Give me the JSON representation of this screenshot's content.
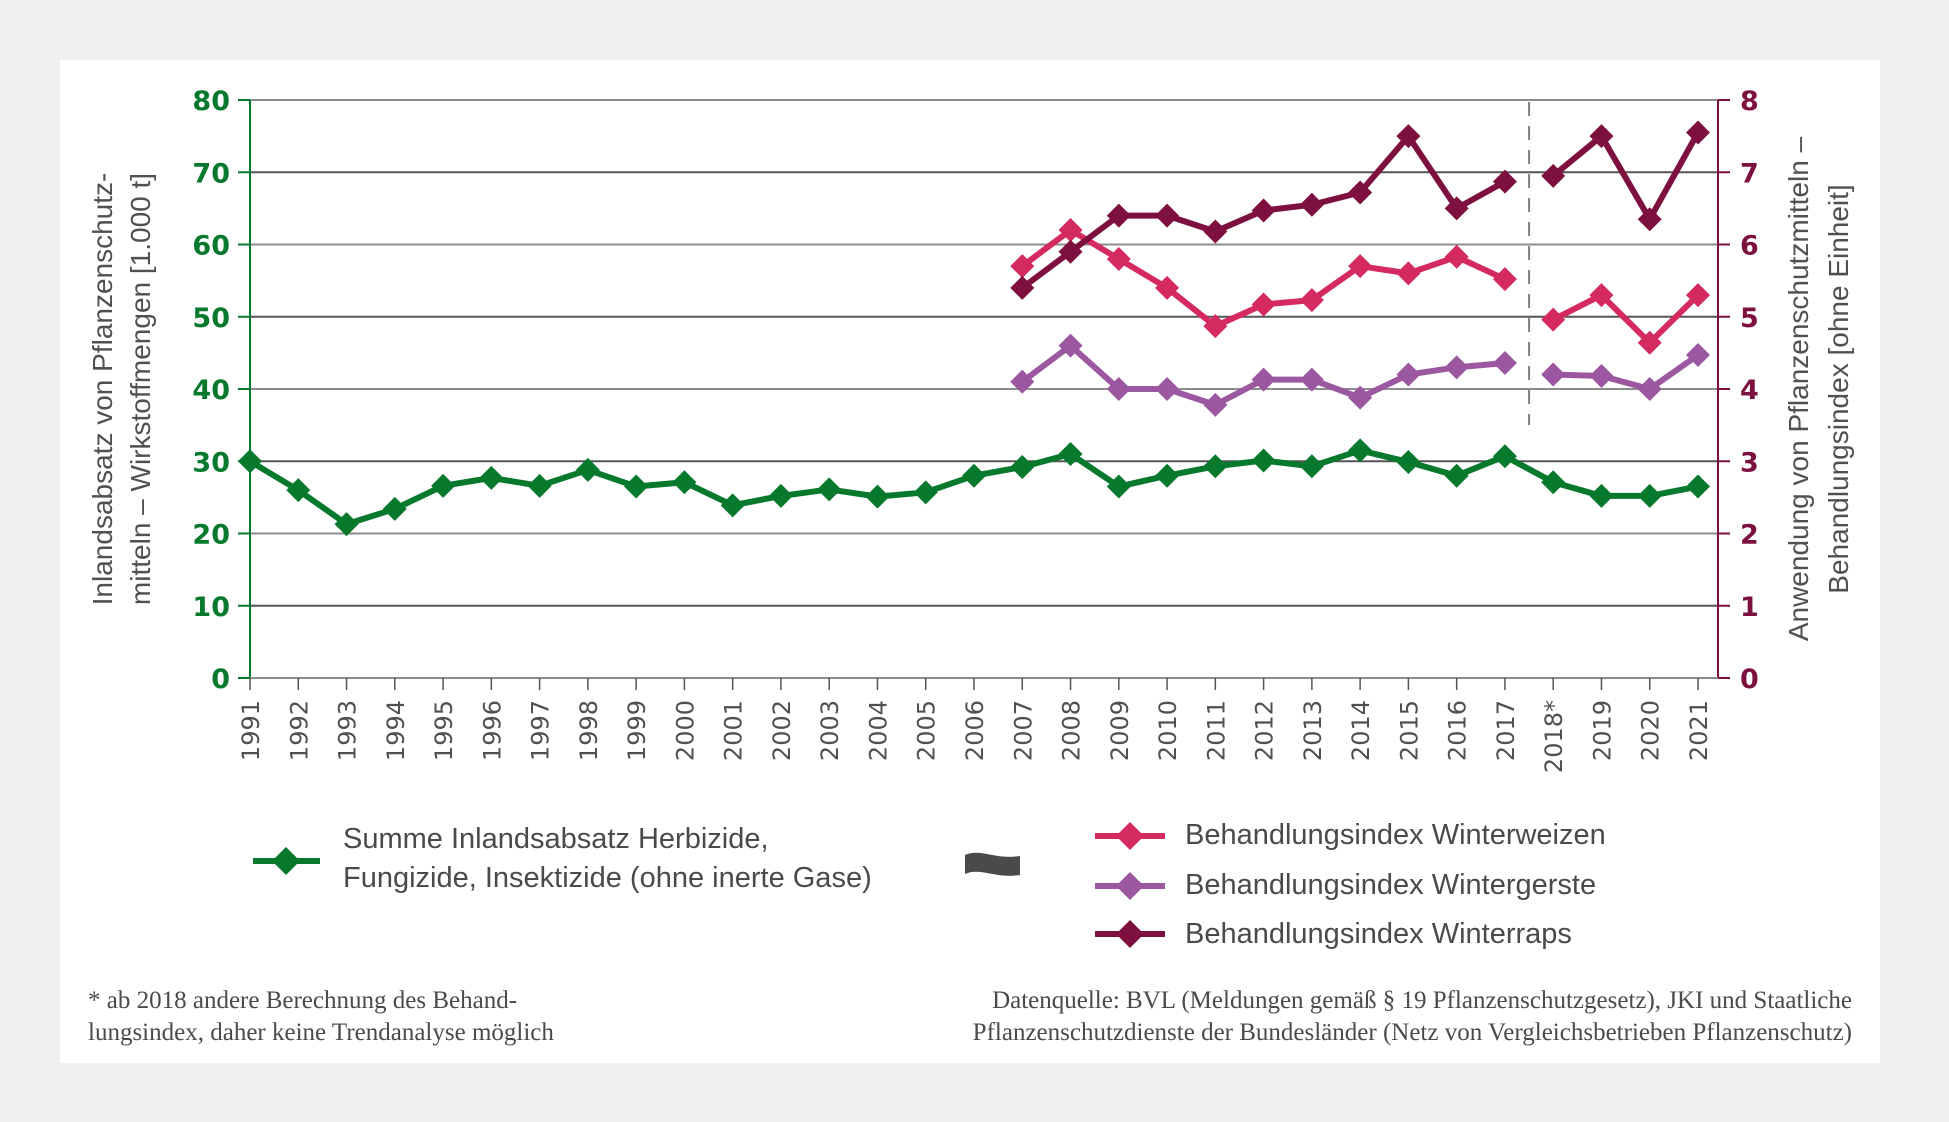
{
  "chart_data": {
    "type": "line",
    "title": "",
    "categories": [
      "1991",
      "1992",
      "1993",
      "1994",
      "1995",
      "1996",
      "1997",
      "1998",
      "1999",
      "2000",
      "2001",
      "2002",
      "2003",
      "2004",
      "2005",
      "2006",
      "2007",
      "2008",
      "2009",
      "2010",
      "2011",
      "2012",
      "2013",
      "2014",
      "2015",
      "2016",
      "2017",
      "2018*",
      "2019",
      "2020",
      "2021"
    ],
    "ylabel_left": [
      "Inlandsabsatz von Pflanzenschutz-",
      "mitteln – Wirkstoffmengen [1.000 t]"
    ],
    "ylabel_right": [
      "Anwendung von Pflanzenschutzmitteln –",
      "Behandlungsindex [ohne Einheit]"
    ],
    "ylim_left": [
      0,
      80
    ],
    "yticks_left": [
      "0",
      "10",
      "20",
      "30",
      "40",
      "50",
      "60",
      "70",
      "80"
    ],
    "ylim_right": [
      0,
      8
    ],
    "yticks_right": [
      "0",
      "1",
      "2",
      "3",
      "4",
      "5",
      "6",
      "7",
      "8"
    ],
    "grid": true,
    "break_marker": {
      "between": [
        "2017",
        "2018*"
      ],
      "style": "dashed"
    },
    "series": [
      {
        "name": "Summe Inlandsabsatz Herbizide, Fungizide, Insektizide (ohne inerte Gase)",
        "axis": "left",
        "color": "#06792d",
        "values": [
          30.0,
          26.0,
          21.3,
          23.4,
          26.6,
          27.7,
          26.6,
          28.8,
          26.5,
          27.1,
          23.9,
          25.2,
          26.1,
          25.1,
          25.7,
          28.0,
          29.2,
          31.0,
          26.5,
          28.0,
          29.3,
          30.1,
          29.3,
          31.5,
          29.9,
          28.0,
          30.7,
          27.1,
          25.2,
          25.2,
          26.5
        ]
      },
      {
        "name": "Behandlungsindex Winterweizen",
        "axis": "right",
        "color": "#d42a5f",
        "values": [
          null,
          null,
          null,
          null,
          null,
          null,
          null,
          null,
          null,
          null,
          null,
          null,
          null,
          null,
          null,
          null,
          5.7,
          6.2,
          5.8,
          5.4,
          4.87,
          5.17,
          5.23,
          5.7,
          5.6,
          5.83,
          5.52,
          4.96,
          5.3,
          4.64,
          5.3
        ]
      },
      {
        "name": "Behandlungsindex Wintergerste",
        "axis": "right",
        "color": "#9b58a0",
        "values": [
          null,
          null,
          null,
          null,
          null,
          null,
          null,
          null,
          null,
          null,
          null,
          null,
          null,
          null,
          null,
          null,
          4.1,
          4.6,
          4.0,
          4.0,
          3.78,
          4.13,
          4.13,
          3.88,
          4.2,
          4.3,
          4.36,
          4.2,
          4.18,
          4.0,
          4.47
        ]
      },
      {
        "name": "Behandlungsindex Winterraps",
        "axis": "right",
        "color": "#7e1040",
        "values": [
          null,
          null,
          null,
          null,
          null,
          null,
          null,
          null,
          null,
          null,
          null,
          null,
          null,
          null,
          null,
          null,
          5.4,
          5.9,
          6.4,
          6.4,
          6.18,
          6.47,
          6.55,
          6.72,
          7.5,
          6.5,
          6.87,
          6.95,
          7.5,
          6.35,
          7.55
        ]
      }
    ]
  },
  "legend": {
    "total_line1": "Summe Inlandsabsatz Herbizide,",
    "total_line2": "Fungizide, Insektizide (ohne inerte Gase)",
    "weizen": "Behandlungsindex Winterweizen",
    "gerste": "Behandlungsindex Wintergerste",
    "raps": "Behandlungsindex Winterraps"
  },
  "footnote": {
    "line1": "* ab 2018 andere Berechnung des Behand-",
    "line2": "lungsindex, daher keine Trendanalyse möglich"
  },
  "source": {
    "line1": "Datenquelle: BVL (Meldungen gemäß § 19 Pflanzenschutzgesetz), JKI und Staatliche",
    "line2": "Pflanzenschutzdienste der Bundesländer (Netz von Vergleichsbetrieben Pflanzenschutz)"
  }
}
